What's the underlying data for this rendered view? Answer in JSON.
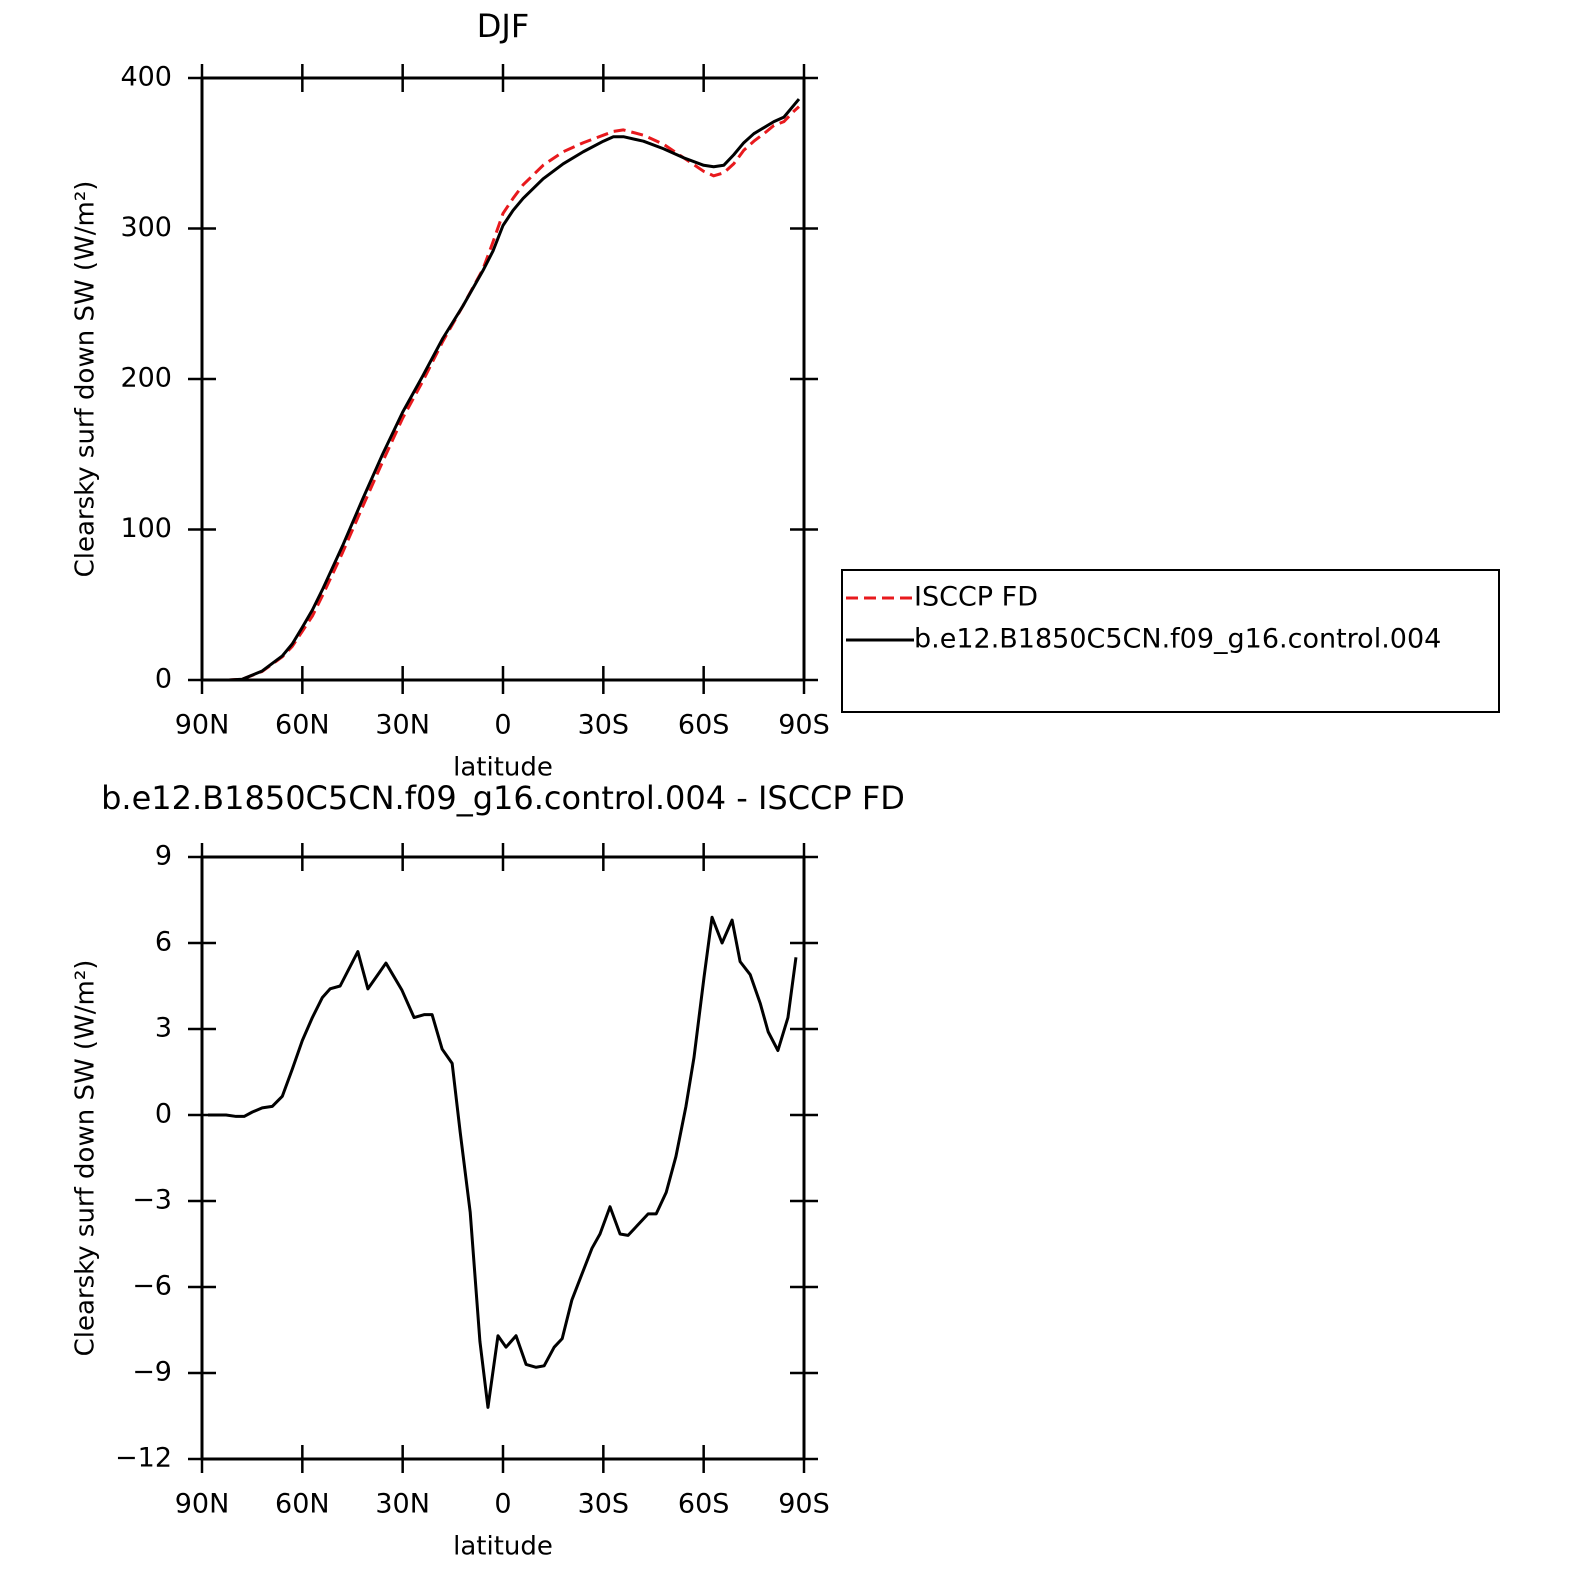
{
  "chart_data": [
    {
      "type": "line",
      "title": "DJF",
      "xlabel": "latitude",
      "ylabel": "Clearsky surf down SW (W/m²)",
      "x": [
        88.5,
        82,
        78,
        72,
        66,
        63,
        60,
        57,
        54,
        48,
        42,
        36,
        30,
        24,
        18,
        12,
        6,
        3,
        0,
        -3,
        -6,
        -12,
        -18,
        -24,
        -30,
        -33,
        -36,
        -42,
        -48,
        -54,
        -60,
        -63,
        -66,
        -69,
        -72,
        -75,
        -78,
        -81,
        -84,
        -87,
        -88.5
      ],
      "series": [
        {
          "name": "ISCCP FD",
          "color": "#e8191d",
          "linestyle": "dashed",
          "values": [
            0,
            0,
            0.5,
            5.7,
            15.4,
            22.4,
            32.4,
            42.5,
            56,
            84.5,
            115,
            145,
            174,
            198.5,
            225,
            248.5,
            273,
            291,
            310,
            320,
            329,
            342,
            351,
            357,
            362,
            364.5,
            365.5,
            362,
            356,
            347,
            338,
            335,
            337,
            343,
            352,
            358,
            363,
            368.5,
            371,
            378,
            381
          ]
        },
        {
          "name": "b.e12.B1850C5CN.f09_g16.control.004",
          "color": "#000000",
          "linestyle": "solid",
          "values": [
            0,
            0,
            0.5,
            6,
            16,
            24,
            35,
            46.5,
            60,
            89,
            120,
            150,
            178,
            202,
            227,
            248.5,
            272,
            285,
            302,
            312,
            320,
            333,
            343,
            351,
            358,
            361,
            361,
            358,
            353,
            347,
            342,
            341,
            342,
            349,
            357,
            363,
            367,
            371,
            374,
            382,
            386
          ]
        }
      ],
      "xlim": [
        90,
        -90
      ],
      "xticks": [
        {
          "value": 90,
          "label": "90N"
        },
        {
          "value": 60,
          "label": "60N"
        },
        {
          "value": 30,
          "label": "30N"
        },
        0,
        {
          "value": -30,
          "label": "30S"
        },
        {
          "value": -60,
          "label": "60S"
        },
        {
          "value": -90,
          "label": "90S"
        }
      ],
      "ylim": [
        0,
        400
      ],
      "yticks": [
        0,
        100,
        200,
        300,
        400
      ],
      "legend": "right"
    },
    {
      "type": "line",
      "title": "b.e12.B1850C5CN.f09_g16.control.004 - ISCCP FD",
      "xlabel": "latitude",
      "ylabel": "Clearsky surf down SW (W/m²)",
      "color": "#000000",
      "x": [
        88.2,
        82.8,
        79.8,
        77.4,
        75,
        72,
        69,
        66,
        63,
        60,
        57,
        54,
        51.7,
        48.7,
        43.4,
        40.4,
        35,
        30.2,
        26.6,
        23.6,
        21.2,
        18.2,
        15.2,
        12.8,
        9.8,
        6.9,
        4.5,
        1.5,
        -0.9,
        -3.9,
        -6.9,
        -9.9,
        -12.3,
        -15.3,
        -17.7,
        -20.6,
        -23.6,
        -26.6,
        -29,
        -32,
        -35,
        -37.4,
        -43.4,
        -45.8,
        -48.8,
        -51.7,
        -54.7,
        -57.1,
        -60.1,
        -62.5,
        -65.5,
        -68.5,
        -70.9,
        -73.9,
        -76.9,
        -79.3,
        -82.2,
        -85.2,
        -87.6
      ],
      "values": [
        0,
        0,
        -0.05,
        -0.05,
        0.1,
        0.25,
        0.3,
        0.65,
        1.6,
        2.6,
        3.4,
        4.1,
        4.4,
        4.5,
        5.7,
        4.4,
        5.3,
        4.35,
        3.4,
        3.5,
        3.5,
        2.3,
        1.8,
        -0.6,
        -3.4,
        -7.9,
        -10.2,
        -7.7,
        -8.1,
        -7.7,
        -8.7,
        -8.8,
        -8.75,
        -8.1,
        -7.8,
        -6.45,
        -5.55,
        -4.65,
        -4.15,
        -3.2,
        -4.15,
        -4.2,
        -3.45,
        -3.45,
        -2.7,
        -1.45,
        0.3,
        2.0,
        4.8,
        6.9,
        6.0,
        6.8,
        5.35,
        4.9,
        3.9,
        2.9,
        2.25,
        3.4,
        5.5
      ],
      "xlim": [
        90,
        -90
      ],
      "xticks": [
        {
          "value": 90,
          "label": "90N"
        },
        {
          "value": 60,
          "label": "60N"
        },
        {
          "value": 30,
          "label": "30N"
        },
        0,
        {
          "value": -30,
          "label": "30S"
        },
        {
          "value": -60,
          "label": "60S"
        },
        {
          "value": -90,
          "label": "90S"
        }
      ],
      "ylim": [
        -12,
        9
      ],
      "yticks": [
        {
          "value": -12,
          "label": "−12"
        },
        {
          "value": -9,
          "label": "−9"
        },
        {
          "value": -6,
          "label": "−6"
        },
        {
          "value": -3,
          "label": "−3"
        },
        0,
        3,
        6,
        9
      ]
    }
  ]
}
